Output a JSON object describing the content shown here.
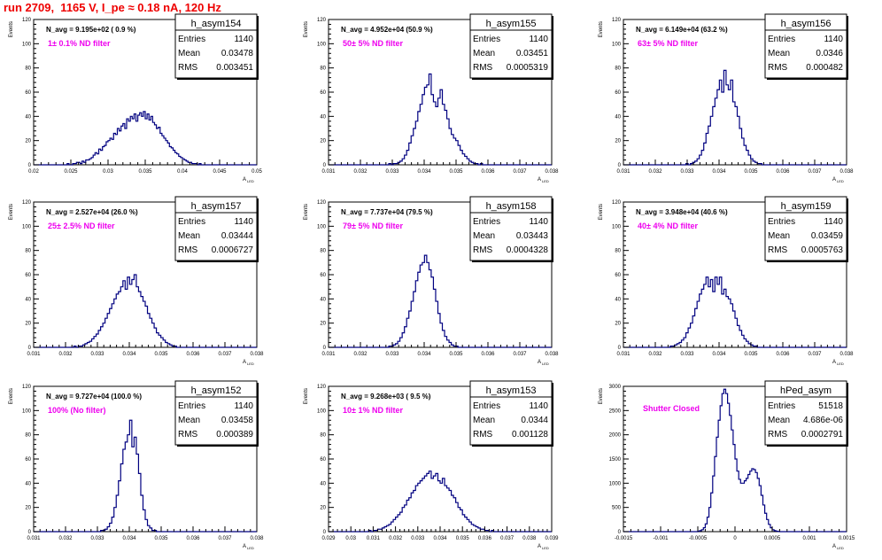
{
  "page_title": "run 2709,  1165 V, I_pe ≈ 0.18 nA, 120 Hz",
  "chart_data": [
    {
      "type": "histogram",
      "name": "h_asym154",
      "stats": {
        "entries_label": "Entries",
        "entries": "1140",
        "mean_label": "Mean",
        "mean": "0.03478",
        "rms_label": "RMS",
        "rms": "0.003451"
      },
      "n_avg_text": "N_avg = 9.195e+02 ( 0.9 %)",
      "filter_text": "1± 0.1% ND filter",
      "ylabel": "Events",
      "xlabel": "A",
      "xlabel_sub": "LED",
      "ylim": [
        0,
        120
      ],
      "xlim": [
        0.02,
        0.05
      ],
      "xticks": [
        "0.02",
        "0.025",
        "0.03",
        "0.035",
        "0.04",
        "0.045",
        "0.05"
      ],
      "yticks": [
        "0",
        "20",
        "40",
        "60",
        "80",
        "100",
        "120"
      ],
      "bin_count": 120,
      "values": [
        0,
        0,
        0,
        0,
        0,
        0,
        0,
        0,
        0,
        0,
        0,
        0,
        0,
        0,
        0,
        0,
        0,
        0,
        1,
        0,
        0,
        1,
        1,
        2,
        2,
        1,
        3,
        2,
        4,
        4,
        5,
        6,
        8,
        10,
        9,
        13,
        12,
        15,
        16,
        19,
        20,
        22,
        21,
        26,
        25,
        30,
        28,
        32,
        34,
        30,
        38,
        36,
        40,
        38,
        42,
        36,
        41,
        43,
        40,
        44,
        38,
        42,
        37,
        40,
        35,
        33,
        30,
        31,
        26,
        24,
        22,
        20,
        18,
        15,
        14,
        12,
        10,
        9,
        7,
        6,
        5,
        4,
        3,
        2,
        2,
        1,
        1,
        1,
        0,
        1,
        0,
        0,
        0,
        0,
        0,
        0,
        0,
        0,
        0,
        0,
        0,
        0,
        0,
        0,
        0,
        0,
        0,
        0,
        0,
        0,
        0,
        0,
        0,
        0,
        0,
        0,
        0,
        0,
        0,
        0
      ]
    },
    {
      "type": "histogram",
      "name": "h_asym155",
      "stats": {
        "entries_label": "Entries",
        "entries": "1140",
        "mean_label": "Mean",
        "mean": "0.03451",
        "rms_label": "RMS",
        "rms": "0.0005319"
      },
      "n_avg_text": "N_avg = 4.952e+04 (50.9 %)",
      "filter_text": "50± 5% ND filter",
      "ylabel": "Events",
      "xlabel": "A",
      "xlabel_sub": "LED",
      "ylim": [
        0,
        120
      ],
      "xlim": [
        0.031,
        0.038
      ],
      "xticks": [
        "0.031",
        "0.032",
        "0.033",
        "0.034",
        "0.035",
        "0.036",
        "0.037",
        "0.038"
      ],
      "yticks": [
        "0",
        "20",
        "40",
        "60",
        "80",
        "100",
        "120"
      ],
      "bin_count": 100,
      "values": [
        0,
        0,
        0,
        0,
        0,
        0,
        0,
        0,
        0,
        0,
        0,
        0,
        0,
        0,
        0,
        0,
        0,
        0,
        0,
        0,
        0,
        0,
        0,
        0,
        0,
        0,
        0,
        1,
        0,
        1,
        1,
        2,
        3,
        5,
        8,
        12,
        18,
        24,
        30,
        36,
        44,
        50,
        58,
        64,
        66,
        75,
        58,
        52,
        48,
        55,
        62,
        50,
        45,
        38,
        30,
        25,
        22,
        20,
        16,
        12,
        9,
        7,
        5,
        3,
        2,
        1,
        1,
        0,
        1,
        0,
        0,
        0,
        0,
        0,
        0,
        0,
        0,
        0,
        0,
        0,
        0,
        0,
        0,
        0,
        0,
        0,
        0,
        0,
        0,
        0,
        0,
        0,
        0,
        0,
        0,
        0,
        0,
        0,
        0,
        0
      ]
    },
    {
      "type": "histogram",
      "name": "h_asym156",
      "stats": {
        "entries_label": "Entries",
        "entries": "1140",
        "mean_label": "Mean",
        "mean": "0.0346",
        "rms_label": "RMS",
        "rms": "0.000482"
      },
      "n_avg_text": "N_avg = 6.149e+04 (63.2 %)",
      "filter_text": "63± 5% ND filter",
      "ylabel": "Events",
      "xlabel": "A",
      "xlabel_sub": "LED",
      "ylim": [
        0,
        120
      ],
      "xlim": [
        0.031,
        0.038
      ],
      "xticks": [
        "0.031",
        "0.032",
        "0.033",
        "0.034",
        "0.035",
        "0.036",
        "0.037",
        "0.038"
      ],
      "yticks": [
        "0",
        "20",
        "40",
        "60",
        "80",
        "100",
        "120"
      ],
      "bin_count": 100,
      "values": [
        0,
        0,
        0,
        0,
        0,
        0,
        0,
        0,
        0,
        0,
        0,
        0,
        0,
        0,
        0,
        0,
        0,
        0,
        0,
        0,
        0,
        0,
        0,
        0,
        0,
        0,
        0,
        0,
        1,
        0,
        1,
        2,
        3,
        5,
        8,
        12,
        18,
        26,
        32,
        40,
        48,
        55,
        62,
        70,
        60,
        78,
        66,
        62,
        70,
        52,
        48,
        40,
        30,
        22,
        16,
        12,
        8,
        5,
        3,
        2,
        1,
        1,
        0,
        0,
        0,
        0,
        0,
        0,
        0,
        0,
        0,
        0,
        0,
        0,
        0,
        0,
        0,
        0,
        0,
        0,
        0,
        0,
        0,
        0,
        0,
        0,
        0,
        0,
        0,
        0,
        0,
        0,
        0,
        0,
        0,
        0,
        0,
        0,
        0,
        0
      ]
    },
    {
      "type": "histogram",
      "name": "h_asym157",
      "stats": {
        "entries_label": "Entries",
        "entries": "1140",
        "mean_label": "Mean",
        "mean": "0.03444",
        "rms_label": "RMS",
        "rms": "0.0006727"
      },
      "n_avg_text": "N_avg = 2.527e+04 (26.0 %)",
      "filter_text": "25± 2.5% ND filter",
      "ylabel": "Events",
      "xlabel": "A",
      "xlabel_sub": "LED",
      "ylim": [
        0,
        120
      ],
      "xlim": [
        0.031,
        0.038
      ],
      "xticks": [
        "0.031",
        "0.032",
        "0.033",
        "0.034",
        "0.035",
        "0.036",
        "0.037",
        "0.038"
      ],
      "yticks": [
        "0",
        "20",
        "40",
        "60",
        "80",
        "100",
        "120"
      ],
      "bin_count": 100,
      "values": [
        0,
        0,
        0,
        0,
        0,
        0,
        0,
        0,
        0,
        0,
        0,
        0,
        0,
        0,
        0,
        0,
        0,
        0,
        1,
        0,
        1,
        1,
        2,
        3,
        4,
        5,
        7,
        9,
        11,
        14,
        17,
        20,
        24,
        28,
        32,
        36,
        40,
        44,
        46,
        50,
        55,
        48,
        58,
        52,
        56,
        60,
        50,
        46,
        42,
        38,
        34,
        28,
        24,
        20,
        16,
        12,
        10,
        8,
        6,
        4,
        3,
        2,
        1,
        1,
        0,
        0,
        0,
        0,
        0,
        0,
        0,
        0,
        0,
        0,
        0,
        0,
        0,
        0,
        0,
        0,
        0,
        0,
        0,
        0,
        0,
        0,
        0,
        0,
        0,
        0,
        0,
        0,
        0,
        0,
        0,
        0,
        0,
        0,
        0,
        0
      ]
    },
    {
      "type": "histogram",
      "name": "h_asym158",
      "stats": {
        "entries_label": "Entries",
        "entries": "1140",
        "mean_label": "Mean",
        "mean": "0.03443",
        "rms_label": "RMS",
        "rms": "0.0004328"
      },
      "n_avg_text": "N_avg = 7.737e+04 (79.5 %)",
      "filter_text": "79± 5% ND filter",
      "ylabel": "Events",
      "xlabel": "A",
      "xlabel_sub": "LED",
      "ylim": [
        0,
        120
      ],
      "xlim": [
        0.031,
        0.038
      ],
      "xticks": [
        "0.031",
        "0.032",
        "0.033",
        "0.034",
        "0.035",
        "0.036",
        "0.037",
        "0.038"
      ],
      "yticks": [
        "0",
        "20",
        "40",
        "60",
        "80",
        "100",
        "120"
      ],
      "bin_count": 100,
      "values": [
        0,
        0,
        0,
        0,
        0,
        0,
        0,
        0,
        0,
        0,
        0,
        0,
        0,
        0,
        0,
        0,
        0,
        0,
        0,
        0,
        0,
        0,
        0,
        0,
        0,
        0,
        0,
        1,
        1,
        2,
        3,
        5,
        8,
        12,
        17,
        24,
        30,
        38,
        46,
        55,
        62,
        68,
        70,
        76,
        70,
        64,
        58,
        48,
        38,
        28,
        20,
        14,
        9,
        6,
        4,
        2,
        1,
        1,
        0,
        0,
        0,
        0,
        0,
        0,
        0,
        0,
        0,
        0,
        0,
        0,
        0,
        0,
        0,
        0,
        0,
        0,
        0,
        0,
        0,
        0,
        0,
        0,
        0,
        0,
        0,
        0,
        0,
        0,
        0,
        0,
        0,
        0,
        0,
        0,
        0,
        0,
        0,
        0,
        0,
        0
      ]
    },
    {
      "type": "histogram",
      "name": "h_asym159",
      "stats": {
        "entries_label": "Entries",
        "entries": "1140",
        "mean_label": "Mean",
        "mean": "0.03459",
        "rms_label": "RMS",
        "rms": "0.0005763"
      },
      "n_avg_text": "N_avg = 3.948e+04 (40.6 %)",
      "filter_text": "40± 4% ND filter",
      "ylabel": "Events",
      "xlabel": "A",
      "xlabel_sub": "LED",
      "ylim": [
        0,
        120
      ],
      "xlim": [
        0.031,
        0.038
      ],
      "xticks": [
        "0.031",
        "0.032",
        "0.033",
        "0.034",
        "0.035",
        "0.036",
        "0.037",
        "0.038"
      ],
      "yticks": [
        "0",
        "20",
        "40",
        "60",
        "80",
        "100",
        "120"
      ],
      "bin_count": 100,
      "values": [
        0,
        0,
        0,
        0,
        0,
        0,
        0,
        0,
        0,
        0,
        0,
        0,
        0,
        0,
        0,
        0,
        0,
        0,
        0,
        0,
        0,
        1,
        1,
        2,
        3,
        4,
        6,
        8,
        12,
        16,
        20,
        26,
        32,
        38,
        44,
        48,
        52,
        58,
        50,
        56,
        46,
        58,
        52,
        58,
        44,
        48,
        42,
        40,
        36,
        30,
        24,
        18,
        14,
        10,
        7,
        5,
        3,
        2,
        1,
        1,
        0,
        0,
        0,
        0,
        0,
        0,
        0,
        0,
        0,
        0,
        0,
        0,
        0,
        0,
        0,
        0,
        0,
        0,
        0,
        0,
        0,
        0,
        0,
        0,
        0,
        0,
        0,
        0,
        0,
        0,
        0,
        0,
        0,
        0,
        0,
        0,
        0,
        0,
        0,
        0
      ]
    },
    {
      "type": "histogram",
      "name": "h_asym152",
      "stats": {
        "entries_label": "Entries",
        "entries": "1140",
        "mean_label": "Mean",
        "mean": "0.03458",
        "rms_label": "RMS",
        "rms": "0.000389"
      },
      "n_avg_text": "N_avg = 9.727e+04 (100.0 %)",
      "filter_text": "100% (No filter)",
      "ylabel": "Events",
      "xlabel": "A",
      "xlabel_sub": "LED",
      "ylim": [
        0,
        120
      ],
      "xlim": [
        0.031,
        0.038
      ],
      "xticks": [
        "0.031",
        "0.032",
        "0.033",
        "0.034",
        "0.035",
        "0.036",
        "0.037",
        "0.038"
      ],
      "yticks": [
        "0",
        "20",
        "40",
        "60",
        "80",
        "100",
        "120"
      ],
      "bin_count": 100,
      "values": [
        0,
        0,
        0,
        0,
        0,
        0,
        0,
        0,
        0,
        0,
        0,
        0,
        0,
        0,
        0,
        0,
        0,
        0,
        0,
        0,
        0,
        0,
        0,
        0,
        0,
        0,
        0,
        0,
        0,
        0,
        1,
        1,
        2,
        4,
        7,
        12,
        20,
        30,
        42,
        56,
        68,
        74,
        80,
        92,
        70,
        78,
        64,
        48,
        30,
        18,
        10,
        5,
        3,
        1,
        1,
        0,
        0,
        0,
        0,
        0,
        0,
        0,
        0,
        0,
        0,
        0,
        0,
        0,
        0,
        0,
        0,
        0,
        0,
        0,
        0,
        0,
        0,
        0,
        0,
        0,
        0,
        0,
        0,
        0,
        0,
        0,
        0,
        0,
        0,
        0,
        0,
        0,
        0,
        0,
        0,
        0,
        0,
        0,
        0,
        0
      ]
    },
    {
      "type": "histogram",
      "name": "h_asym153",
      "stats": {
        "entries_label": "Entries",
        "entries": "1140",
        "mean_label": "Mean",
        "mean": "0.0344",
        "rms_label": "RMS",
        "rms": "0.001128"
      },
      "n_avg_text": "N_avg = 9.268e+03 ( 9.5 %)",
      "filter_text": "10± 1% ND filter",
      "ylabel": "Events",
      "xlabel": "A",
      "xlabel_sub": "LED",
      "ylim": [
        0,
        120
      ],
      "xlim": [
        0.029,
        0.039
      ],
      "xticks": [
        "0.029",
        "0.03",
        "0.031",
        "0.032",
        "0.033",
        "0.034",
        "0.035",
        "0.036",
        "0.037",
        "0.038",
        "0.039"
      ],
      "yticks": [
        "0",
        "20",
        "40",
        "60",
        "80",
        "100",
        "120"
      ],
      "bin_count": 100,
      "values": [
        0,
        0,
        0,
        0,
        0,
        0,
        0,
        0,
        0,
        0,
        0,
        0,
        0,
        0,
        0,
        0,
        0,
        0,
        1,
        0,
        1,
        1,
        2,
        2,
        3,
        4,
        5,
        6,
        8,
        10,
        12,
        14,
        16,
        20,
        22,
        26,
        28,
        32,
        34,
        38,
        40,
        42,
        44,
        46,
        48,
        50,
        44,
        46,
        48,
        42,
        40,
        44,
        38,
        36,
        34,
        30,
        28,
        24,
        20,
        18,
        14,
        12,
        10,
        8,
        6,
        5,
        4,
        3,
        2,
        2,
        1,
        1,
        0,
        1,
        0,
        0,
        0,
        0,
        0,
        0,
        0,
        0,
        0,
        0,
        0,
        0,
        0,
        0,
        0,
        0,
        0,
        0,
        0,
        0,
        0,
        0,
        0,
        0,
        0,
        0
      ]
    },
    {
      "type": "histogram",
      "name": "hPed_asym",
      "stats": {
        "entries_label": "Entries",
        "entries": "51518",
        "mean_label": "Mean",
        "mean": "4.686e-06",
        "rms_label": "RMS",
        "rms": "0.0002791"
      },
      "n_avg_text": "",
      "filter_text": "Shutter Closed",
      "ylabel": "Events",
      "xlabel": "A",
      "xlabel_sub": "LED",
      "ylim": [
        0,
        3000
      ],
      "xlim": [
        -0.0015,
        0.0015
      ],
      "xticks": [
        "-0.0015",
        "-0.001",
        "-0.0005",
        "0",
        "0.0005",
        "0.001",
        "0.0015"
      ],
      "yticks": [
        "0",
        "500",
        "1000",
        "1500",
        "2000",
        "2500",
        "3000"
      ],
      "bin_count": 120,
      "values": [
        0,
        0,
        0,
        0,
        0,
        0,
        0,
        0,
        0,
        0,
        0,
        0,
        0,
        0,
        0,
        0,
        0,
        0,
        0,
        0,
        0,
        0,
        0,
        0,
        0,
        0,
        0,
        0,
        0,
        0,
        0,
        0,
        0,
        0,
        0,
        0,
        0,
        0,
        0,
        0,
        10,
        20,
        40,
        80,
        160,
        300,
        500,
        800,
        1150,
        1550,
        1950,
        2300,
        2600,
        2850,
        2940,
        2850,
        2650,
        2400,
        2100,
        1800,
        1500,
        1250,
        1080,
        1000,
        1000,
        1050,
        1100,
        1180,
        1250,
        1300,
        1280,
        1220,
        1100,
        950,
        750,
        550,
        380,
        250,
        150,
        80,
        40,
        20,
        10,
        5,
        0,
        0,
        0,
        0,
        0,
        0,
        0,
        0,
        0,
        0,
        0,
        0,
        0,
        0,
        0,
        0,
        0,
        0,
        0,
        0,
        0,
        0,
        0,
        0,
        0,
        0,
        0,
        0,
        0,
        0,
        0,
        0,
        0,
        0,
        0,
        0
      ]
    }
  ]
}
